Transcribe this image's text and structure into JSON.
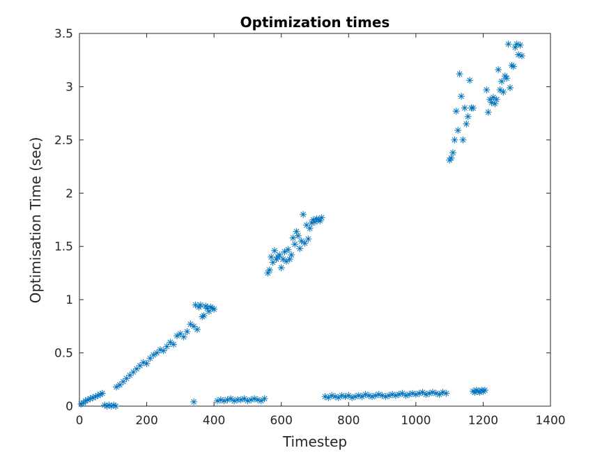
{
  "chart_data": {
    "type": "scatter",
    "title": "Optimization times",
    "xlabel": "Timestep",
    "ylabel": "Optimisation Time (sec)",
    "xlim": [
      0,
      1400
    ],
    "ylim": [
      0,
      3.5
    ],
    "xticks": [
      0,
      200,
      400,
      600,
      800,
      1000,
      1200,
      1400
    ],
    "yticks": [
      0,
      0.5,
      1,
      1.5,
      2,
      2.5,
      3,
      3.5
    ],
    "xtick_labels": [
      "0",
      "200",
      "400",
      "600",
      "800",
      "1000",
      "1200",
      "1400"
    ],
    "ytick_labels": [
      "0",
      "0.5",
      "1",
      "1.5",
      "2",
      "2.5",
      "3",
      "3.5"
    ],
    "grid": false,
    "marker": "asterisk",
    "color": "#0072bd",
    "series": [
      {
        "x": [
          5,
          12,
          18,
          25,
          32,
          40,
          48,
          55,
          62,
          68,
          75,
          82,
          88,
          95,
          102,
          108,
          110,
          120,
          130,
          140,
          150,
          160,
          170,
          180,
          190,
          200,
          210,
          220,
          230,
          240,
          250,
          260,
          270,
          280,
          290,
          300,
          310,
          320,
          330,
          340,
          350,
          360,
          370,
          380,
          390,
          400,
          345,
          355,
          365,
          375,
          385,
          395,
          340,
          410,
          420,
          430,
          440,
          450,
          460,
          470,
          480,
          490,
          500,
          510,
          520,
          530,
          540,
          550,
          560,
          565,
          570,
          575,
          580,
          585,
          590,
          595,
          600,
          605,
          610,
          615,
          620,
          625,
          630,
          635,
          640,
          645,
          650,
          655,
          660,
          665,
          670,
          675,
          680,
          685,
          690,
          695,
          700,
          705,
          710,
          715,
          720,
          730,
          740,
          750,
          760,
          770,
          780,
          790,
          800,
          810,
          820,
          830,
          840,
          850,
          860,
          870,
          880,
          890,
          900,
          910,
          920,
          930,
          940,
          950,
          960,
          970,
          980,
          990,
          1000,
          1010,
          1020,
          1030,
          1040,
          1050,
          1060,
          1070,
          1080,
          1090,
          1170,
          1175,
          1180,
          1185,
          1190,
          1195,
          1200,
          1205,
          1100,
          1105,
          1110,
          1115,
          1120,
          1125,
          1130,
          1135,
          1140,
          1145,
          1150,
          1155,
          1160,
          1165,
          1170,
          1210,
          1215,
          1220,
          1225,
          1230,
          1235,
          1240,
          1245,
          1250,
          1255,
          1260,
          1265,
          1270,
          1275,
          1280,
          1285,
          1290,
          1295,
          1300,
          1305,
          1310,
          1315
        ],
        "y": [
          0.02,
          0.03,
          0.05,
          0.06,
          0.07,
          0.08,
          0.09,
          0.1,
          0.11,
          0.12,
          0.01,
          0.0,
          0.01,
          0.0,
          0.01,
          0.0,
          0.18,
          0.2,
          0.23,
          0.26,
          0.29,
          0.32,
          0.35,
          0.38,
          0.41,
          0.4,
          0.45,
          0.48,
          0.5,
          0.53,
          0.52,
          0.56,
          0.6,
          0.58,
          0.66,
          0.68,
          0.65,
          0.7,
          0.77,
          0.75,
          0.72,
          0.95,
          0.85,
          0.92,
          0.93,
          0.91,
          0.95,
          0.93,
          0.84,
          0.94,
          0.89,
          0.92,
          0.04,
          0.05,
          0.06,
          0.05,
          0.06,
          0.07,
          0.05,
          0.06,
          0.06,
          0.07,
          0.05,
          0.06,
          0.07,
          0.06,
          0.05,
          0.07,
          1.25,
          1.28,
          1.4,
          1.35,
          1.46,
          1.38,
          1.4,
          1.42,
          1.3,
          1.38,
          1.45,
          1.36,
          1.47,
          1.38,
          1.42,
          1.58,
          1.52,
          1.64,
          1.6,
          1.48,
          1.55,
          1.8,
          1.53,
          1.7,
          1.57,
          1.67,
          1.72,
          1.75,
          1.73,
          1.76,
          1.75,
          1.74,
          1.77,
          0.09,
          0.08,
          0.1,
          0.09,
          0.08,
          0.1,
          0.09,
          0.1,
          0.08,
          0.09,
          0.1,
          0.09,
          0.11,
          0.1,
          0.09,
          0.1,
          0.11,
          0.1,
          0.09,
          0.1,
          0.11,
          0.1,
          0.11,
          0.12,
          0.1,
          0.11,
          0.12,
          0.11,
          0.12,
          0.13,
          0.11,
          0.12,
          0.13,
          0.12,
          0.11,
          0.13,
          0.12,
          0.14,
          0.13,
          0.15,
          0.14,
          0.13,
          0.15,
          0.14,
          0.15,
          2.31,
          2.33,
          2.38,
          2.5,
          2.77,
          2.59,
          3.12,
          2.91,
          2.5,
          2.8,
          2.65,
          2.72,
          3.06,
          2.8,
          2.8,
          2.97,
          2.76,
          2.88,
          2.85,
          2.9,
          2.84,
          2.88,
          3.16,
          2.97,
          3.05,
          2.95,
          3.1,
          3.08,
          3.4,
          2.99,
          3.2,
          3.19,
          3.37,
          3.4,
          3.3,
          3.39,
          3.29
        ]
      }
    ]
  }
}
